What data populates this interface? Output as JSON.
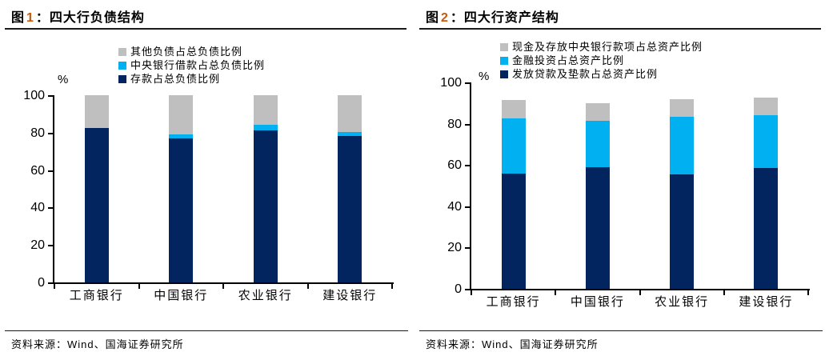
{
  "panels": [
    {
      "title_prefix": "图",
      "title_num": "1",
      "title_rest": "：四大行负债结构",
      "source": "资料来源：Wind、国海证券研究所"
    },
    {
      "title_prefix": "图",
      "title_num": "2",
      "title_rest": "：四大行资产结构",
      "source": "资料来源：Wind、国海证券研究所"
    }
  ],
  "colors": {
    "navy": "#02255F",
    "light_blue": "#00B0F0",
    "gray": "#BFBFBF",
    "accent_number": "#C45911",
    "axis": "#000000"
  },
  "chart_data": [
    {
      "type": "bar",
      "stacked": true,
      "title": "图 1：四大行负债结构",
      "unit": "%",
      "categories": [
        "工商银行",
        "中国银行",
        "农业银行",
        "建设银行"
      ],
      "series": [
        {
          "name": "存款占总负债比例",
          "color": "#02255F",
          "values": [
            82.5,
            77,
            81,
            78
          ]
        },
        {
          "name": "中央银行借款占总负债比例",
          "color": "#00B0F0",
          "values": [
            0,
            2,
            3,
            2.5
          ]
        },
        {
          "name": "其他负债占总负债比例",
          "color": "#BFBFBF",
          "values": [
            17.5,
            21,
            16,
            19.5
          ]
        }
      ],
      "legend": [
        "其他负债占总负债比例",
        "中央银行借款占总负债比例",
        "存款占总负债比例"
      ],
      "legend_position": "top-inside",
      "ylim": [
        0,
        100
      ],
      "yticks": [
        0,
        20,
        40,
        60,
        80,
        100
      ],
      "grid": false
    },
    {
      "type": "bar",
      "stacked": true,
      "title": "图 2：四大行资产结构",
      "unit": "%",
      "categories": [
        "工商银行",
        "中国银行",
        "农业银行",
        "建设银行"
      ],
      "series": [
        {
          "name": "发放贷款及垫款占总资产比例",
          "color": "#02255F",
          "values": [
            56,
            59,
            55.5,
            58.5
          ]
        },
        {
          "name": "金融投资占总资产比例",
          "color": "#00B0F0",
          "values": [
            26.5,
            22.5,
            28,
            25.5
          ]
        },
        {
          "name": "现金及存放中央银行款项占总资产比例",
          "color": "#BFBFBF",
          "values": [
            9,
            8.5,
            8.5,
            8.5
          ]
        }
      ],
      "legend": [
        "现金及存放中央银行款项占总资产比例",
        "金融投资占总资产比例",
        "发放贷款及垫款占总资产比例"
      ],
      "legend_position": "top-inside",
      "ylim": [
        0,
        100
      ],
      "yticks": [
        0,
        20,
        40,
        60,
        80,
        100
      ],
      "grid": false
    }
  ]
}
